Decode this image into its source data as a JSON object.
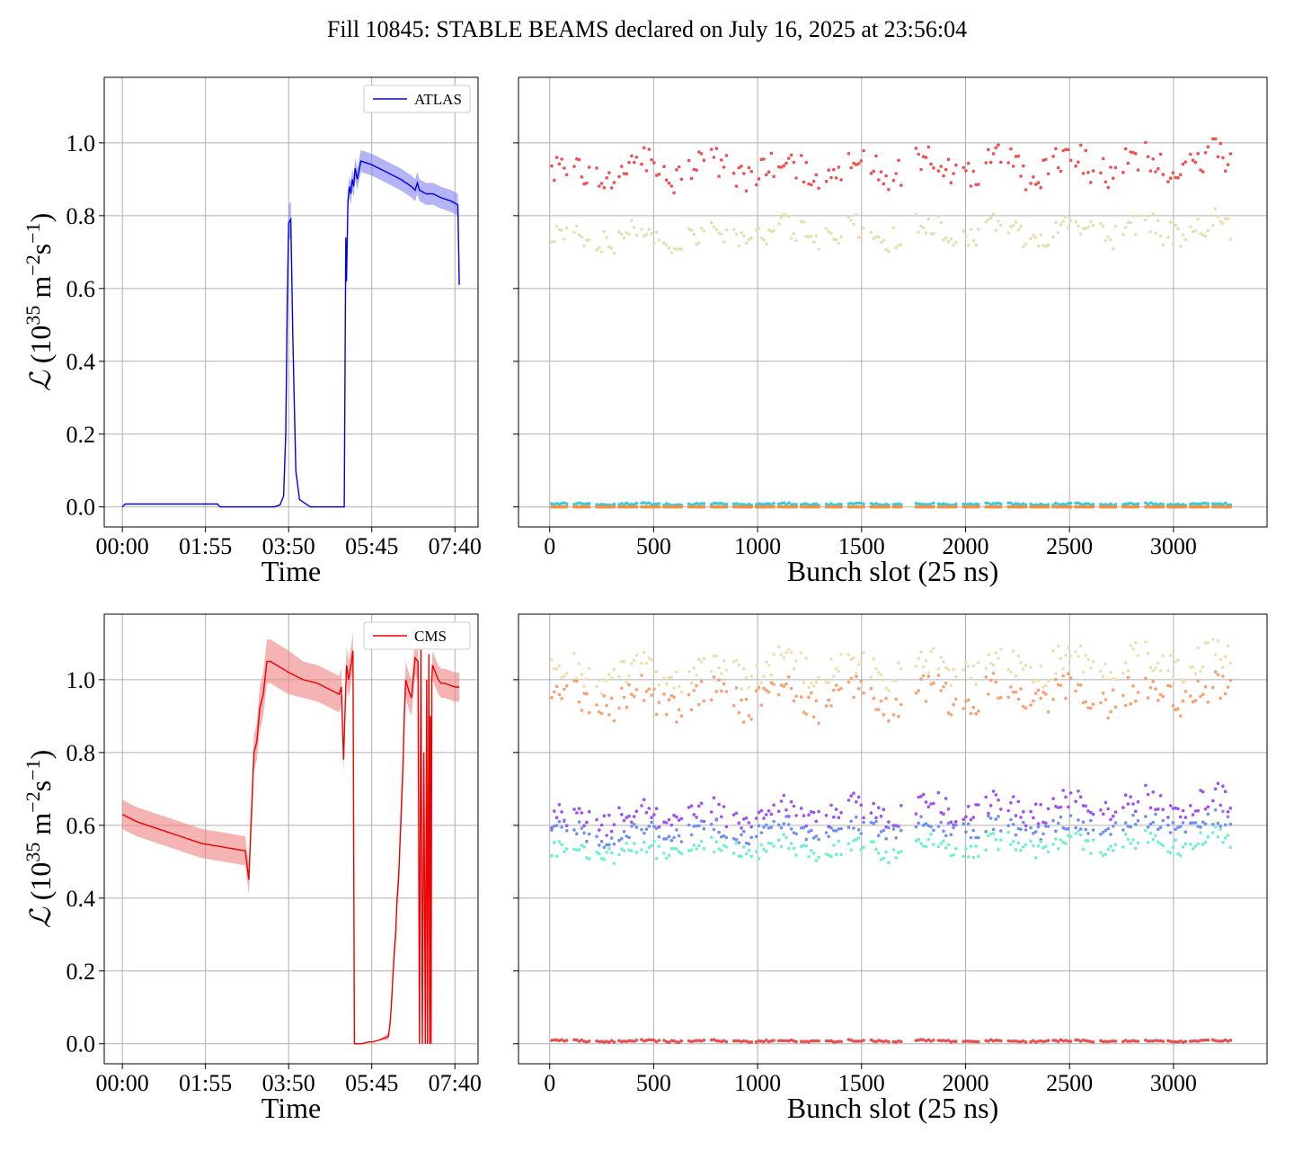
{
  "title": "Fill 10845: STABLE BEAMS declared on July 16, 2025 at 23:56:04",
  "chart_data": [
    {
      "type": "line",
      "panel": "top-left",
      "legend": [
        "ATLAS"
      ],
      "legend_position": "top-right",
      "xlabel": "Time",
      "ylabel": "L (10^35 m^-2 s^-1)",
      "xticks": [
        "00:00",
        "01:55",
        "03:50",
        "05:45",
        "07:40"
      ],
      "xtick_minutes": [
        0,
        115,
        230,
        345,
        460
      ],
      "xlim_minutes": [
        -25,
        492
      ],
      "yticks": [
        "0.0",
        "0.2",
        "0.4",
        "0.6",
        "0.8",
        "1.0"
      ],
      "ylim": [
        -0.055,
        1.18
      ],
      "grid": true,
      "series": [
        {
          "name": "ATLAS",
          "color": "#0000ee",
          "band_color": "#8080f0",
          "x_minutes": [
            0,
            4,
            100,
            132,
            135,
            210,
            218,
            223,
            226,
            228,
            230,
            233,
            236,
            240,
            245,
            260,
            307,
            309,
            310,
            312,
            314,
            316,
            318,
            320,
            322,
            325,
            330,
            345,
            365,
            385,
            400,
            405,
            408,
            411,
            420,
            430,
            440,
            455,
            464,
            466
          ],
          "y": [
            0.0,
            0.008,
            0.008,
            0.008,
            0.0,
            0.0,
            0.005,
            0.03,
            0.2,
            0.55,
            0.78,
            0.79,
            0.45,
            0.1,
            0.02,
            0.0,
            0.0,
            0.74,
            0.62,
            0.84,
            0.88,
            0.86,
            0.9,
            0.88,
            0.93,
            0.9,
            0.95,
            0.94,
            0.92,
            0.9,
            0.88,
            0.87,
            0.89,
            0.87,
            0.86,
            0.86,
            0.85,
            0.84,
            0.83,
            0.61
          ],
          "band": [
            0.0,
            0.0,
            0.0,
            0.0,
            0.0,
            0.0,
            0.0,
            0.0,
            0.01,
            0.03,
            0.05,
            0.05,
            0.02,
            0.0,
            0.0,
            0.0,
            0.0,
            0.02,
            0.02,
            0.03,
            0.03,
            0.03,
            0.03,
            0.03,
            0.03,
            0.03,
            0.03,
            0.03,
            0.03,
            0.03,
            0.03,
            0.03,
            0.03,
            0.03,
            0.03,
            0.03,
            0.03,
            0.03,
            0.03,
            0.02
          ]
        }
      ]
    },
    {
      "type": "scatter",
      "panel": "top-right",
      "xlabel": "Bunch slot (25 ns)",
      "xticks": [
        "0",
        "500",
        "1000",
        "1500",
        "2000",
        "2500",
        "3000"
      ],
      "xtick_values": [
        0,
        500,
        1000,
        1500,
        2000,
        2500,
        3000
      ],
      "xlim": [
        -150,
        3450
      ],
      "ylim": [
        -0.055,
        1.18
      ],
      "grid": true,
      "series": [
        {
          "color": "#f05050",
          "level": 0.93,
          "spread": 0.05,
          "trend": 0.02
        },
        {
          "color": "#e6e0b0",
          "level": 0.75,
          "spread": 0.04,
          "trend": 0.02
        },
        {
          "color": "#40c8d8",
          "level": 0.008,
          "spread": 0.003,
          "trend": 0.0
        },
        {
          "color": "#f09040",
          "level": 0.0,
          "spread": 0.0,
          "trend": 0.0
        }
      ]
    },
    {
      "type": "line",
      "panel": "bottom-left",
      "legend": [
        "CMS"
      ],
      "legend_position": "top-right",
      "xlabel": "Time",
      "ylabel": "L (10^35 m^-2 s^-1)",
      "xticks": [
        "00:00",
        "01:55",
        "03:50",
        "05:45",
        "07:40"
      ],
      "xtick_minutes": [
        0,
        115,
        230,
        345,
        460
      ],
      "xlim_minutes": [
        -25,
        492
      ],
      "yticks": [
        "0.0",
        "0.2",
        "0.4",
        "0.6",
        "0.8",
        "1.0"
      ],
      "ylim": [
        -0.055,
        1.18
      ],
      "grid": true,
      "series": [
        {
          "name": "CMS",
          "color": "#ee0000",
          "band_color": "#f08080",
          "x_minutes": [
            0,
            20,
            50,
            80,
            110,
            140,
            170,
            172,
            175,
            178,
            182,
            186,
            190,
            195,
            200,
            205,
            230,
            250,
            270,
            290,
            300,
            303,
            306,
            310,
            313,
            317,
            319,
            321,
            331,
            341,
            346,
            355,
            368,
            370,
            372,
            374,
            376,
            378,
            380,
            382,
            384,
            386,
            388,
            390,
            392,
            396,
            400,
            405,
            409,
            411,
            413,
            415,
            417,
            419,
            421,
            422,
            424,
            425,
            426,
            427,
            428,
            429,
            433,
            437,
            441,
            446,
            460,
            466
          ],
          "y": [
            0.63,
            0.61,
            0.59,
            0.57,
            0.55,
            0.54,
            0.53,
            0.5,
            0.45,
            0.6,
            0.8,
            0.83,
            0.92,
            0.96,
            1.05,
            1.05,
            1.02,
            1.0,
            0.99,
            0.97,
            0.96,
            0.98,
            0.78,
            1.04,
            1.0,
            1.05,
            1.08,
            0.0,
            0.0,
            0.005,
            0.005,
            0.01,
            0.02,
            0.05,
            0.1,
            0.18,
            0.25,
            0.3,
            0.4,
            0.45,
            0.55,
            0.65,
            0.75,
            0.9,
            1.0,
            0.97,
            0.95,
            1.06,
            1.05,
            0.0,
            1.1,
            0.0,
            0.8,
            0.0,
            1.0,
            0.0,
            1.07,
            0.0,
            0.9,
            0.0,
            1.0,
            1.04,
            1.02,
            1.0,
            0.99,
            0.99,
            0.98,
            0.98
          ],
          "band": [
            0.04,
            0.04,
            0.04,
            0.04,
            0.04,
            0.04,
            0.04,
            0.04,
            0.04,
            0.05,
            0.05,
            0.05,
            0.06,
            0.06,
            0.06,
            0.06,
            0.06,
            0.05,
            0.05,
            0.05,
            0.05,
            0.05,
            0.03,
            0.05,
            0.05,
            0.05,
            0.05,
            0.0,
            0.0,
            0.0,
            0.0,
            0.0,
            0.01,
            0.01,
            0.02,
            0.02,
            0.03,
            0.03,
            0.03,
            0.04,
            0.04,
            0.05,
            0.05,
            0.05,
            0.05,
            0.05,
            0.05,
            0.05,
            0.05,
            0.0,
            0.0,
            0.0,
            0.0,
            0.0,
            0.0,
            0.0,
            0.0,
            0.0,
            0.0,
            0.0,
            0.0,
            0.04,
            0.04,
            0.04,
            0.04,
            0.04,
            0.04,
            0.04
          ]
        }
      ]
    },
    {
      "type": "scatter",
      "panel": "bottom-right",
      "xlabel": "Bunch slot (25 ns)",
      "xticks": [
        "0",
        "500",
        "1000",
        "1500",
        "2000",
        "2500",
        "3000"
      ],
      "xtick_values": [
        0,
        500,
        1000,
        1500,
        2000,
        2500,
        3000
      ],
      "xlim": [
        -150,
        3450
      ],
      "ylim": [
        -0.055,
        1.18
      ],
      "grid": true,
      "series": [
        {
          "color": "#ece0b0",
          "level": 1.02,
          "spread": 0.05,
          "trend": 0.04
        },
        {
          "color": "#f8a070",
          "level": 0.95,
          "spread": 0.05,
          "trend": 0.02
        },
        {
          "color": "#a050f0",
          "level": 0.62,
          "spread": 0.04,
          "trend": 0.05
        },
        {
          "color": "#7090f0",
          "level": 0.58,
          "spread": 0.03,
          "trend": 0.03
        },
        {
          "color": "#70f0d0",
          "level": 0.53,
          "spread": 0.03,
          "trend": 0.03
        },
        {
          "color": "#e85050",
          "level": 0.008,
          "spread": 0.003,
          "trend": 0.0
        }
      ]
    }
  ]
}
